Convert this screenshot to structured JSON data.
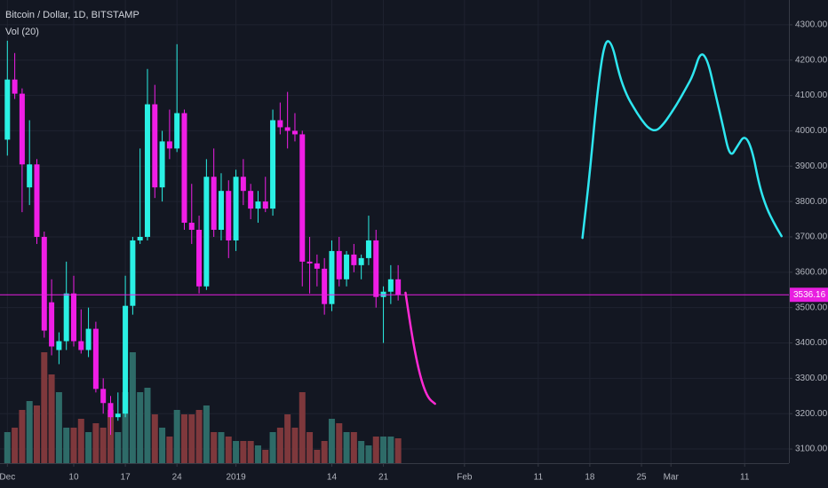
{
  "chart_data": {
    "type": "candlestick",
    "title": "Bitcoin / Dollar, 1D, BITSTAMP",
    "subtitle": "Vol (20)",
    "x": [
      "2018-12-01",
      "2018-12-02",
      "2018-12-03",
      "2018-12-04",
      "2018-12-05",
      "2018-12-06",
      "2018-12-07",
      "2018-12-08",
      "2018-12-09",
      "2018-12-10",
      "2018-12-11",
      "2018-12-12",
      "2018-12-13",
      "2018-12-14",
      "2018-12-15",
      "2018-12-16",
      "2018-12-17",
      "2018-12-18",
      "2018-12-19",
      "2018-12-20",
      "2018-12-21",
      "2018-12-22",
      "2018-12-23",
      "2018-12-24",
      "2018-12-25",
      "2018-12-26",
      "2018-12-27",
      "2018-12-28",
      "2018-12-29",
      "2018-12-30",
      "2018-12-31",
      "2019-01-01",
      "2019-01-02",
      "2019-01-03",
      "2019-01-04",
      "2019-01-05",
      "2019-01-06",
      "2019-01-07",
      "2019-01-08",
      "2019-01-09",
      "2019-01-10",
      "2019-01-11",
      "2019-01-12",
      "2019-01-13",
      "2019-01-14",
      "2019-01-15",
      "2019-01-16",
      "2019-01-17",
      "2019-01-18",
      "2019-01-19",
      "2019-01-20",
      "2019-01-21",
      "2019-01-22",
      "2019-01-23"
    ],
    "open": [
      3975,
      4145,
      4105,
      3840,
      3905,
      3700,
      3515,
      3380,
      3405,
      3540,
      3405,
      3380,
      3440,
      3270,
      3230,
      3190,
      3200,
      3505,
      3690,
      3700,
      4075,
      3840,
      3970,
      3950,
      4050,
      3740,
      3720,
      3560,
      3870,
      3720,
      3830,
      3690,
      3870,
      3830,
      3780,
      3800,
      3780,
      4030,
      4010,
      4000,
      3990,
      3630,
      3625,
      3610,
      3510,
      3660,
      3580,
      3650,
      3620,
      3640,
      3690,
      3530,
      3545,
      3580
    ],
    "high": [
      4255,
      4220,
      4120,
      4030,
      3920,
      3715,
      3580,
      3430,
      3630,
      3590,
      3495,
      3500,
      3460,
      3300,
      3250,
      3260,
      3590,
      3700,
      3950,
      4175,
      4130,
      4000,
      4060,
      4245,
      4060,
      3850,
      3760,
      3920,
      3950,
      3880,
      3860,
      3890,
      3920,
      3850,
      3830,
      3870,
      4060,
      4080,
      4110,
      4050,
      4000,
      3700,
      3650,
      3640,
      3690,
      3700,
      3660,
      3680,
      3650,
      3760,
      3720,
      3560,
      3620,
      3620
    ],
    "low": [
      3930,
      4090,
      3770,
      3790,
      3680,
      3415,
      3365,
      3340,
      3380,
      3390,
      3370,
      3360,
      3260,
      3200,
      3140,
      3180,
      3190,
      3480,
      3680,
      3690,
      3810,
      3800,
      3920,
      3940,
      3720,
      3680,
      3540,
      3550,
      3700,
      3690,
      3640,
      3660,
      3790,
      3750,
      3740,
      3770,
      3760,
      3990,
      3950,
      3970,
      3560,
      3540,
      3560,
      3480,
      3490,
      3560,
      3560,
      3600,
      3580,
      3620,
      3500,
      3400,
      3510,
      3520
    ],
    "close": [
      4145,
      4105,
      3905,
      3905,
      3700,
      3435,
      3390,
      3405,
      3540,
      3405,
      3380,
      3440,
      3270,
      3230,
      3190,
      3200,
      3505,
      3690,
      3700,
      4075,
      3840,
      3970,
      3950,
      4050,
      3740,
      3720,
      3560,
      3870,
      3720,
      3830,
      3690,
      3870,
      3830,
      3780,
      3800,
      3780,
      4030,
      4010,
      4000,
      3990,
      3630,
      3625,
      3610,
      3510,
      3660,
      3580,
      3650,
      3620,
      3640,
      3690,
      3530,
      3545,
      3580,
      3536.16
    ],
    "volume": [
      35,
      40,
      60,
      70,
      65,
      125,
      100,
      80,
      40,
      40,
      50,
      35,
      45,
      40,
      60,
      35,
      80,
      125,
      80,
      85,
      55,
      40,
      30,
      60,
      55,
      55,
      60,
      65,
      35,
      35,
      30,
      25,
      25,
      25,
      20,
      15,
      35,
      40,
      55,
      40,
      80,
      35,
      15,
      25,
      50,
      45,
      35,
      35,
      25,
      20,
      30,
      30,
      30,
      28
    ],
    "up_color": "#2af0e4",
    "down_color": "#f01ee6",
    "volume_up_color": "#2e6b68",
    "volume_down_color": "#7e383c",
    "last_price": 3536.16,
    "last_price_color": "#e81ee0",
    "drawings": [
      {
        "color": "#ff2ad4",
        "x": [
          "2019-01-24",
          "2019-01-25",
          "2019-01-26",
          "2019-01-27",
          "2019-01-28"
        ],
        "values": [
          3542,
          3404,
          3303,
          3245,
          3228
        ]
      },
      {
        "color": "#2ee6f0",
        "x": [
          "2019-02-17",
          "2019-02-18",
          "2019-02-19",
          "2019-02-20",
          "2019-02-21",
          "2019-02-22",
          "2019-02-23",
          "2019-02-24",
          "2019-02-25",
          "2019-02-26",
          "2019-02-27",
          "2019-02-28",
          "2019-03-01",
          "2019-03-02",
          "2019-03-03",
          "2019-03-04",
          "2019-03-05",
          "2019-03-06",
          "2019-03-07",
          "2019-03-08",
          "2019-03-09",
          "2019-03-10",
          "2019-03-11",
          "2019-03-12",
          "2019-03-13",
          "2019-03-14",
          "2019-03-15",
          "2019-03-16"
        ],
        "values": [
          3697,
          3881,
          4107,
          4257,
          4250,
          4157,
          4100,
          4064,
          4031,
          4006,
          3999,
          4019,
          4049,
          4082,
          4119,
          4157,
          4225,
          4200,
          4107,
          4019,
          3923,
          3956,
          3989,
          3949,
          3843,
          3780,
          3738,
          3702
        ]
      }
    ],
    "xlim": [
      "2018-11-30",
      "2019-03-17"
    ],
    "ylim": [
      3060,
      4370
    ],
    "yticks": [
      {
        "value": 3100,
        "label": "3100.00"
      },
      {
        "value": 3200,
        "label": "3200.00"
      },
      {
        "value": 3300,
        "label": "3300.00"
      },
      {
        "value": 3400,
        "label": "3400.00"
      },
      {
        "value": 3500,
        "label": "3500.00"
      },
      {
        "value": 3600,
        "label": "3600.00"
      },
      {
        "value": 3700,
        "label": "3700.00"
      },
      {
        "value": 3800,
        "label": "3800.00"
      },
      {
        "value": 3900,
        "label": "3900.00"
      },
      {
        "value": 4000,
        "label": "4000.00"
      },
      {
        "value": 4100,
        "label": "4100.00"
      },
      {
        "value": 4200,
        "label": "4200.00"
      },
      {
        "value": 4300,
        "label": "4300.00"
      }
    ],
    "xticks": [
      {
        "value": "2018-12-01",
        "label": "Dec"
      },
      {
        "value": "2018-12-10",
        "label": "10"
      },
      {
        "value": "2018-12-17",
        "label": "17"
      },
      {
        "value": "2018-12-24",
        "label": "24"
      },
      {
        "value": "2019-01-01",
        "label": "2019"
      },
      {
        "value": "2019-01-14",
        "label": "14"
      },
      {
        "value": "2019-01-21",
        "label": "21"
      },
      {
        "value": "2019-02-01",
        "label": "Feb"
      },
      {
        "value": "2019-02-11",
        "label": "11"
      },
      {
        "value": "2019-02-18",
        "label": "18"
      },
      {
        "value": "2019-02-25",
        "label": "25"
      },
      {
        "value": "2019-03-01",
        "label": "Mar"
      },
      {
        "value": "2019-03-11",
        "label": "11"
      }
    ],
    "grid": true
  }
}
